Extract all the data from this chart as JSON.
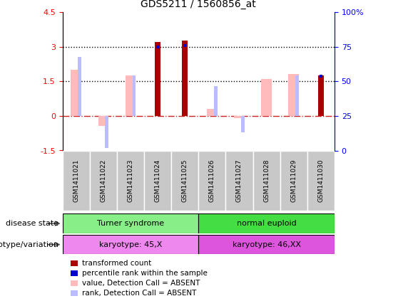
{
  "title": "GDS5211 / 1560856_at",
  "samples": [
    "GSM1411021",
    "GSM1411022",
    "GSM1411023",
    "GSM1411024",
    "GSM1411025",
    "GSM1411026",
    "GSM1411027",
    "GSM1411028",
    "GSM1411029",
    "GSM1411030"
  ],
  "transformed_count": [
    null,
    null,
    null,
    3.2,
    3.25,
    null,
    null,
    null,
    null,
    1.75
  ],
  "percentile_rank_val": [
    null,
    null,
    null,
    3.0,
    3.05,
    null,
    null,
    null,
    null,
    1.72
  ],
  "value_absent": [
    2.0,
    -0.45,
    1.75,
    null,
    null,
    0.3,
    -0.1,
    1.6,
    1.8,
    null
  ],
  "rank_absent": [
    2.55,
    -1.4,
    1.75,
    null,
    null,
    1.3,
    -0.7,
    null,
    1.75,
    null
  ],
  "ylim_left": [
    -1.5,
    4.5
  ],
  "ylim_right": [
    0,
    100
  ],
  "yticks_left": [
    -1.5,
    0,
    1.5,
    3.0,
    4.5
  ],
  "yticks_right": [
    0,
    25,
    50,
    75,
    100
  ],
  "disease_state_groups": [
    {
      "label": "Turner syndrome",
      "start": 0,
      "end": 5,
      "color": "#88ee88"
    },
    {
      "label": "normal euploid",
      "start": 5,
      "end": 10,
      "color": "#44dd44"
    }
  ],
  "genotype_groups": [
    {
      "label": "karyotype: 45,X",
      "start": 0,
      "end": 5,
      "color": "#ee88ee"
    },
    {
      "label": "karyotype: 46,XX",
      "start": 5,
      "end": 10,
      "color": "#dd55dd"
    }
  ],
  "color_transformed": "#aa0000",
  "color_percentile": "#0000cc",
  "color_value_absent": "#ffbbbb",
  "color_rank_absent": "#bbbbff",
  "color_hline_zero": "#cc2222",
  "legend_items": [
    {
      "label": "transformed count",
      "color": "#aa0000"
    },
    {
      "label": "percentile rank within the sample",
      "color": "#0000cc"
    },
    {
      "label": "value, Detection Call = ABSENT",
      "color": "#ffbbbb"
    },
    {
      "label": "rank, Detection Call = ABSENT",
      "color": "#bbbbff"
    }
  ]
}
